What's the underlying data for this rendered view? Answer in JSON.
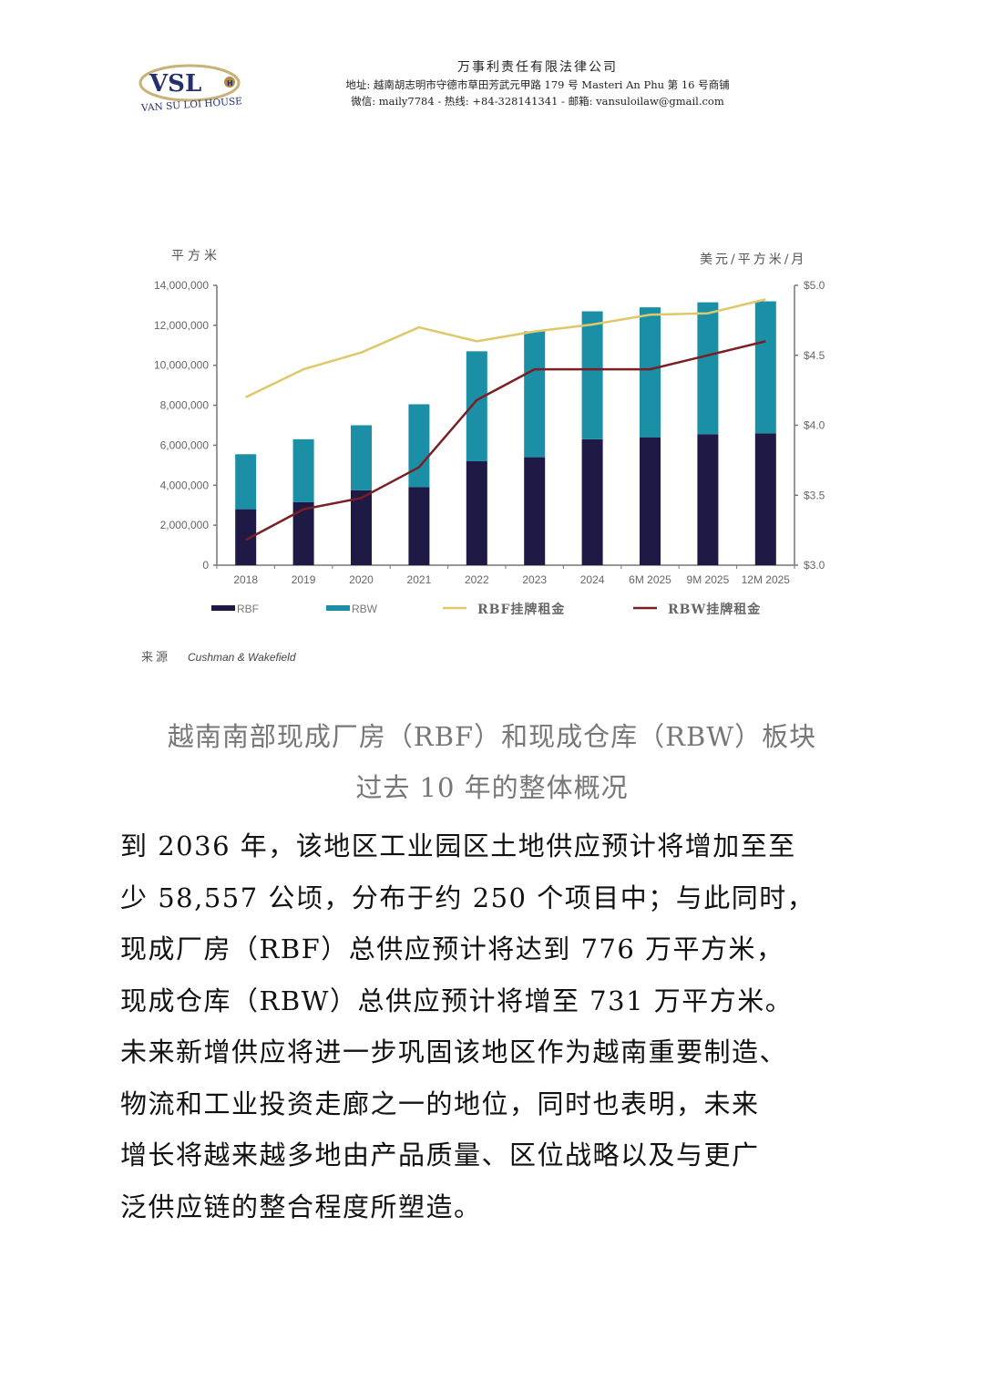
{
  "header": {
    "logo_text": "VSL",
    "logo_badge": "H",
    "logo_subtext": "VAN SU LOI HOUSE",
    "company_name": "万事利责任有限法律公司",
    "address": "地址: 越南胡志明市守德市草田芳武元甲路 179 号 Masteri An Phu 第 16 号商铺",
    "contact": "微信: maily7784 - 热线: +84-328141341 - 邮箱: vansuloilaw@gmail.com"
  },
  "chart_data": {
    "type": "bar",
    "stacked": true,
    "title": "",
    "ylabel": "平方米",
    "ylabel_right": "美元/平方米/月",
    "categories": [
      "2018",
      "2019",
      "2020",
      "2021",
      "2022",
      "2023",
      "2024",
      "6M 2025",
      "9M 2025",
      "12M 2025"
    ],
    "ylim": [
      0,
      14000000
    ],
    "yticks": [
      "0",
      "2,000,000",
      "4,000,000",
      "6,000,000",
      "8,000,000",
      "10,000,000",
      "12,000,000",
      "14,000,000"
    ],
    "ylim_right": [
      3.0,
      5.0
    ],
    "yticks_right": [
      "$3.0",
      "$3.5",
      "$4.0",
      "$4.5",
      "$5.0"
    ],
    "series": [
      {
        "name": "RBF",
        "type": "bar",
        "axis": "left",
        "color": "#1e1a45",
        "values": [
          2800000,
          3150000,
          3750000,
          3900000,
          5200000,
          5400000,
          6300000,
          6400000,
          6550000,
          6600000
        ]
      },
      {
        "name": "RBW",
        "type": "bar",
        "axis": "left",
        "color": "#1a8fa6",
        "values": [
          2750000,
          3150000,
          3250000,
          4150000,
          5500000,
          6300000,
          6400000,
          6500000,
          6600000,
          6600000
        ]
      },
      {
        "name": "RBF挂牌租金",
        "type": "line",
        "axis": "right",
        "color": "#e0c76a",
        "values": [
          4.2,
          4.4,
          4.52,
          4.7,
          4.6,
          4.67,
          4.72,
          4.79,
          4.8,
          4.9
        ]
      },
      {
        "name": "RBW挂牌租金",
        "type": "line",
        "axis": "right",
        "color": "#7a1f24",
        "values": [
          3.18,
          3.4,
          3.48,
          3.7,
          4.18,
          4.4,
          4.4,
          4.4,
          4.5,
          4.6
        ]
      }
    ],
    "legend": [
      "RBF",
      "RBW",
      "RBF挂牌租金",
      "RBW挂牌租金"
    ],
    "legend_position": "bottom",
    "grid": false,
    "source_label": "来源",
    "source": "Cushman & Wakefield"
  },
  "caption": {
    "line1": "越南南部现成厂房（RBF）和现成仓库（RBW）板块",
    "line2": "过去 10 年的整体概况"
  },
  "body": {
    "lines": [
      "到 2036 年，该地区工业园区土地供应预计将增加至至",
      "少 58,557 公顷，分布于约 250 个项目中；与此同时，",
      "现成厂房（RBF）总供应预计将达到 776 万平方米，",
      "现成仓库（RBW）总供应预计将增至 731 万平方米。",
      "未来新增供应将进一步巩固该地区作为越南重要制造、",
      "物流和工业投资走廊之一的地位，同时也表明，未来",
      "增长将越来越多地由产品质量、区位战略以及与更广",
      "泛供应链的整合程度所塑造。"
    ]
  }
}
